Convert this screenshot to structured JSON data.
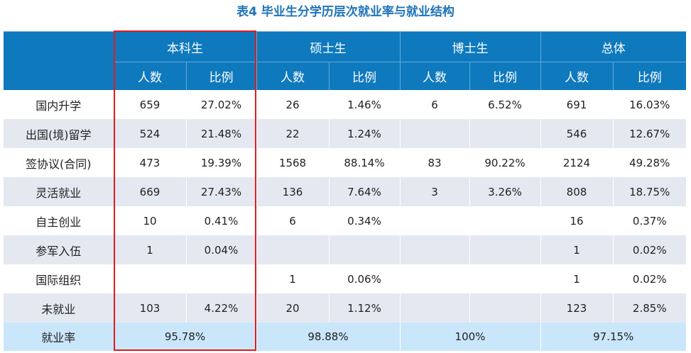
{
  "title": "表4  毕业生分学历层次就业率与就业结构",
  "headers": {
    "groups": [
      "本科生",
      "硕士生",
      "博士生",
      "总体"
    ],
    "sub": [
      "人数",
      "比例"
    ]
  },
  "rows": [
    {
      "label": "国内升学",
      "cells": [
        "659",
        "27.02%",
        "26",
        "1.46%",
        "6",
        "6.52%",
        "691",
        "16.03%"
      ]
    },
    {
      "label": "出国(境)留学",
      "cells": [
        "524",
        "21.48%",
        "22",
        "1.24%",
        "",
        "",
        "546",
        "12.67%"
      ]
    },
    {
      "label": "签协议(合同)",
      "cells": [
        "473",
        "19.39%",
        "1568",
        "88.14%",
        "83",
        "90.22%",
        "2124",
        "49.28%"
      ]
    },
    {
      "label": "灵活就业",
      "cells": [
        "669",
        "27.43%",
        "136",
        "7.64%",
        "3",
        "3.26%",
        "808",
        "18.75%"
      ]
    },
    {
      "label": "自主创业",
      "cells": [
        "10",
        "0.41%",
        "6",
        "0.34%",
        "",
        "",
        "16",
        "0.37%"
      ]
    },
    {
      "label": "参军入伍",
      "cells": [
        "1",
        "0.04%",
        "",
        "",
        "",
        "",
        "1",
        "0.02%"
      ]
    },
    {
      "label": "国际组织",
      "cells": [
        "",
        "",
        "1",
        "0.06%",
        "",
        "",
        "1",
        "0.02%"
      ]
    },
    {
      "label": "未就业",
      "cells": [
        "103",
        "4.22%",
        "20",
        "1.12%",
        "",
        "",
        "123",
        "2.85%"
      ]
    }
  ],
  "rate": {
    "label": "就业率",
    "values": [
      "95.78%",
      "98.88%",
      "100%",
      "97.15%"
    ]
  },
  "colors": {
    "header_bg": "#0f79bd",
    "row_alt_bg": "#e4e9f1",
    "rate_row_bg": "#c9e6fb",
    "title_color": "#1f74b8",
    "highlight_border": "#e21c1c"
  }
}
